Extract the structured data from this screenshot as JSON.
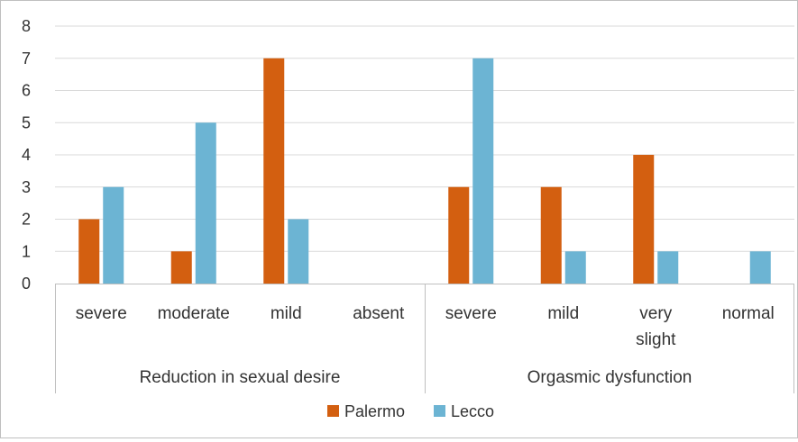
{
  "chart_data": {
    "type": "bar",
    "title": "",
    "xlabel": "",
    "ylabel": "",
    "ylim": [
      0,
      8
    ],
    "yticks": [
      0,
      1,
      2,
      3,
      4,
      5,
      6,
      7,
      8
    ],
    "grid": true,
    "legend_position": "bottom",
    "groups": [
      {
        "label": "Reduction in sexual desire",
        "categories": [
          "severe",
          "moderate",
          "mild",
          "absent"
        ]
      },
      {
        "label": "Orgasmic dysfunction",
        "categories": [
          "severe",
          "mild",
          "very slight",
          "normal"
        ]
      }
    ],
    "categories": [
      "severe",
      "moderate",
      "mild",
      "absent",
      "severe",
      "mild",
      "very slight",
      "normal"
    ],
    "series": [
      {
        "name": "Palermo",
        "color": "#d35f10",
        "values": [
          2,
          1,
          7,
          0,
          3,
          3,
          4,
          0
        ]
      },
      {
        "name": "Lecco",
        "color": "#6cb4d3",
        "values": [
          3,
          5,
          2,
          0,
          7,
          1,
          1,
          1
        ]
      }
    ]
  }
}
